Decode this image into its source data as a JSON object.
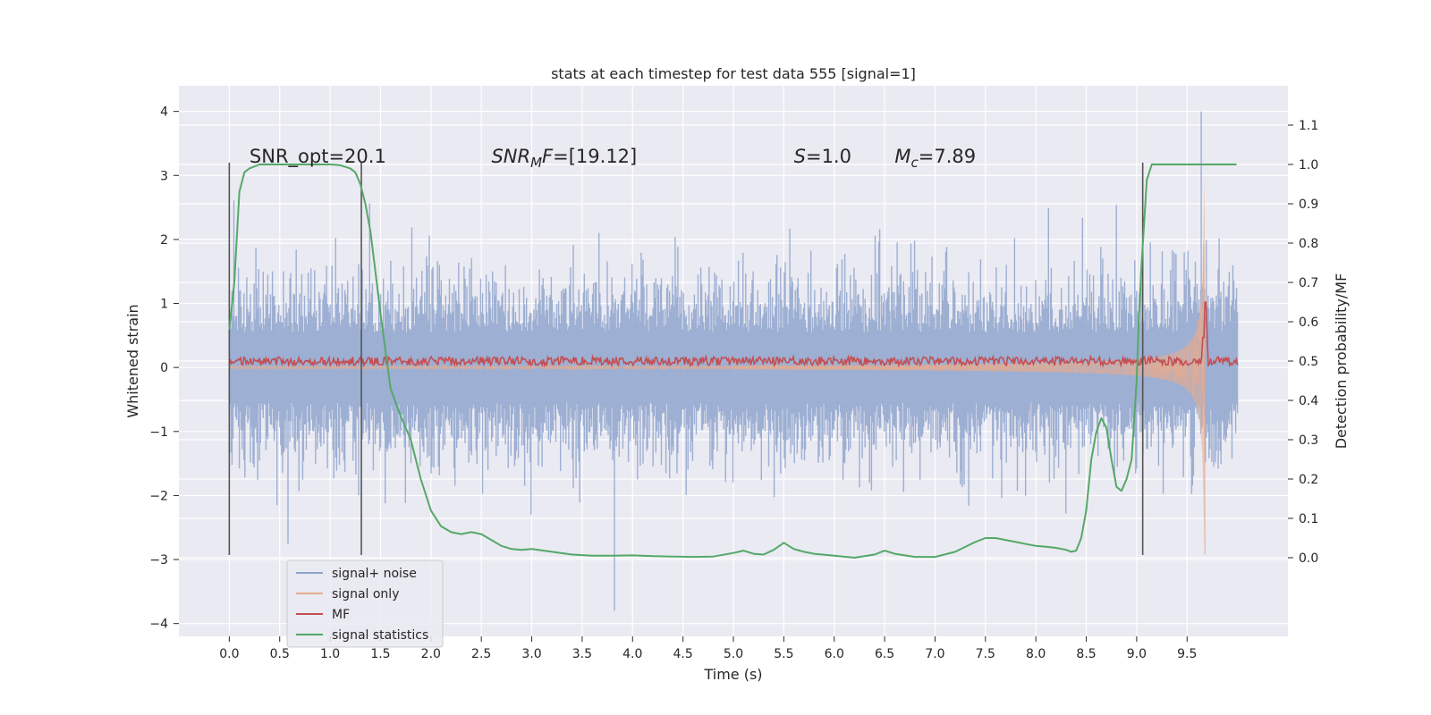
{
  "chart_data": {
    "type": "line",
    "title": "stats at each timestep for test data 555 [signal=1]",
    "xlabel": "Time (s)",
    "ylabel_left": "Whitened strain",
    "ylabel_right": "Detection probability/MF",
    "xlim": [
      -0.5,
      10.5
    ],
    "ylim_left": [
      -4.2,
      4.4
    ],
    "ylim_right": [
      -0.2,
      1.2
    ],
    "x_ticks": [
      "0.0",
      "0.5",
      "1.0",
      "1.5",
      "2.0",
      "2.5",
      "3.0",
      "3.5",
      "4.0",
      "4.5",
      "5.0",
      "5.5",
      "6.0",
      "6.5",
      "7.0",
      "7.5",
      "8.0",
      "8.5",
      "9.0",
      "9.5"
    ],
    "y_ticks_left": [
      "−4",
      "−3",
      "−2",
      "−1",
      "0",
      "1",
      "2",
      "3",
      "4"
    ],
    "y_ticks_right": [
      "0.0",
      "0.1",
      "0.2",
      "0.3",
      "0.4",
      "0.5",
      "0.6",
      "0.7",
      "0.8",
      "0.9",
      "1.0",
      "1.1"
    ],
    "grid": true,
    "annotations": [
      {
        "id": "snr_opt",
        "text": "SNR_opt=20.1",
        "x": 0.2,
        "y": 3.2
      },
      {
        "id": "snr_mf",
        "text": "SNR_MF=[19.12]",
        "x": 2.6,
        "y": 3.2
      },
      {
        "id": "s_val",
        "text": "S=1.0",
        "x": 5.6,
        "y": 3.2
      },
      {
        "id": "mc_val",
        "text": "M_c=7.89",
        "x": 6.6,
        "y": 3.2
      }
    ],
    "vlines_x": [
      0.0,
      1.31,
      9.06
    ],
    "vline_ylim_left": [
      -2.93,
      3.2
    ],
    "legend_placement": "lower-left",
    "series": [
      {
        "name": "signal+ noise",
        "color": "#8fa4cc",
        "axis": "left",
        "x_range": [
          0.0,
          10.0
        ],
        "envelope_max": 4.0,
        "envelope_min": -3.8
      },
      {
        "name": "signal only",
        "color": "#e6ab8f",
        "axis": "left",
        "x_range": [
          0.0,
          9.68
        ],
        "amplitude_start": 0.05,
        "amplitude_end": 3.0
      },
      {
        "name": "MF",
        "color": "#c44e52",
        "axis": "right",
        "x_range": [
          0.0,
          10.0
        ],
        "baseline": 0.5,
        "peak": {
          "x": 9.68,
          "y": 0.65
        }
      },
      {
        "name": "signal statistics",
        "color": "#55a868",
        "axis": "right",
        "x": [
          0.0,
          0.05,
          0.1,
          0.15,
          0.2,
          0.3,
          0.5,
          0.8,
          1.0,
          1.1,
          1.2,
          1.25,
          1.3,
          1.35,
          1.4,
          1.5,
          1.6,
          1.7,
          1.8,
          1.9,
          2.0,
          2.1,
          2.2,
          2.3,
          2.4,
          2.5,
          2.6,
          2.7,
          2.8,
          2.9,
          3.0,
          3.2,
          3.4,
          3.6,
          3.8,
          4.0,
          4.2,
          4.4,
          4.6,
          4.8,
          5.0,
          5.1,
          5.2,
          5.3,
          5.4,
          5.5,
          5.6,
          5.7,
          5.8,
          6.0,
          6.2,
          6.4,
          6.5,
          6.6,
          6.8,
          7.0,
          7.2,
          7.4,
          7.5,
          7.6,
          7.8,
          8.0,
          8.1,
          8.2,
          8.3,
          8.35,
          8.4,
          8.45,
          8.5,
          8.55,
          8.6,
          8.65,
          8.7,
          8.75,
          8.8,
          8.85,
          8.9,
          8.95,
          9.0,
          9.02,
          9.05,
          9.1,
          9.15,
          9.2,
          9.3,
          9.5,
          9.7,
          9.99
        ],
        "y": [
          0.58,
          0.7,
          0.93,
          0.98,
          0.99,
          1.0,
          1.0,
          1.0,
          1.0,
          0.998,
          0.99,
          0.98,
          0.95,
          0.9,
          0.83,
          0.62,
          0.43,
          0.36,
          0.3,
          0.2,
          0.12,
          0.08,
          0.065,
          0.06,
          0.065,
          0.06,
          0.045,
          0.03,
          0.022,
          0.02,
          0.022,
          0.015,
          0.008,
          0.005,
          0.005,
          0.006,
          0.004,
          0.003,
          0.002,
          0.003,
          0.012,
          0.018,
          0.01,
          0.008,
          0.02,
          0.038,
          0.022,
          0.015,
          0.01,
          0.005,
          0.0,
          0.008,
          0.018,
          0.01,
          0.002,
          0.002,
          0.015,
          0.04,
          0.05,
          0.05,
          0.04,
          0.03,
          0.028,
          0.025,
          0.02,
          0.015,
          0.018,
          0.05,
          0.12,
          0.25,
          0.32,
          0.355,
          0.33,
          0.25,
          0.18,
          0.17,
          0.2,
          0.25,
          0.45,
          0.6,
          0.75,
          0.96,
          1.0,
          1.0,
          1.0,
          1.0,
          1.0,
          1.0
        ]
      }
    ]
  }
}
